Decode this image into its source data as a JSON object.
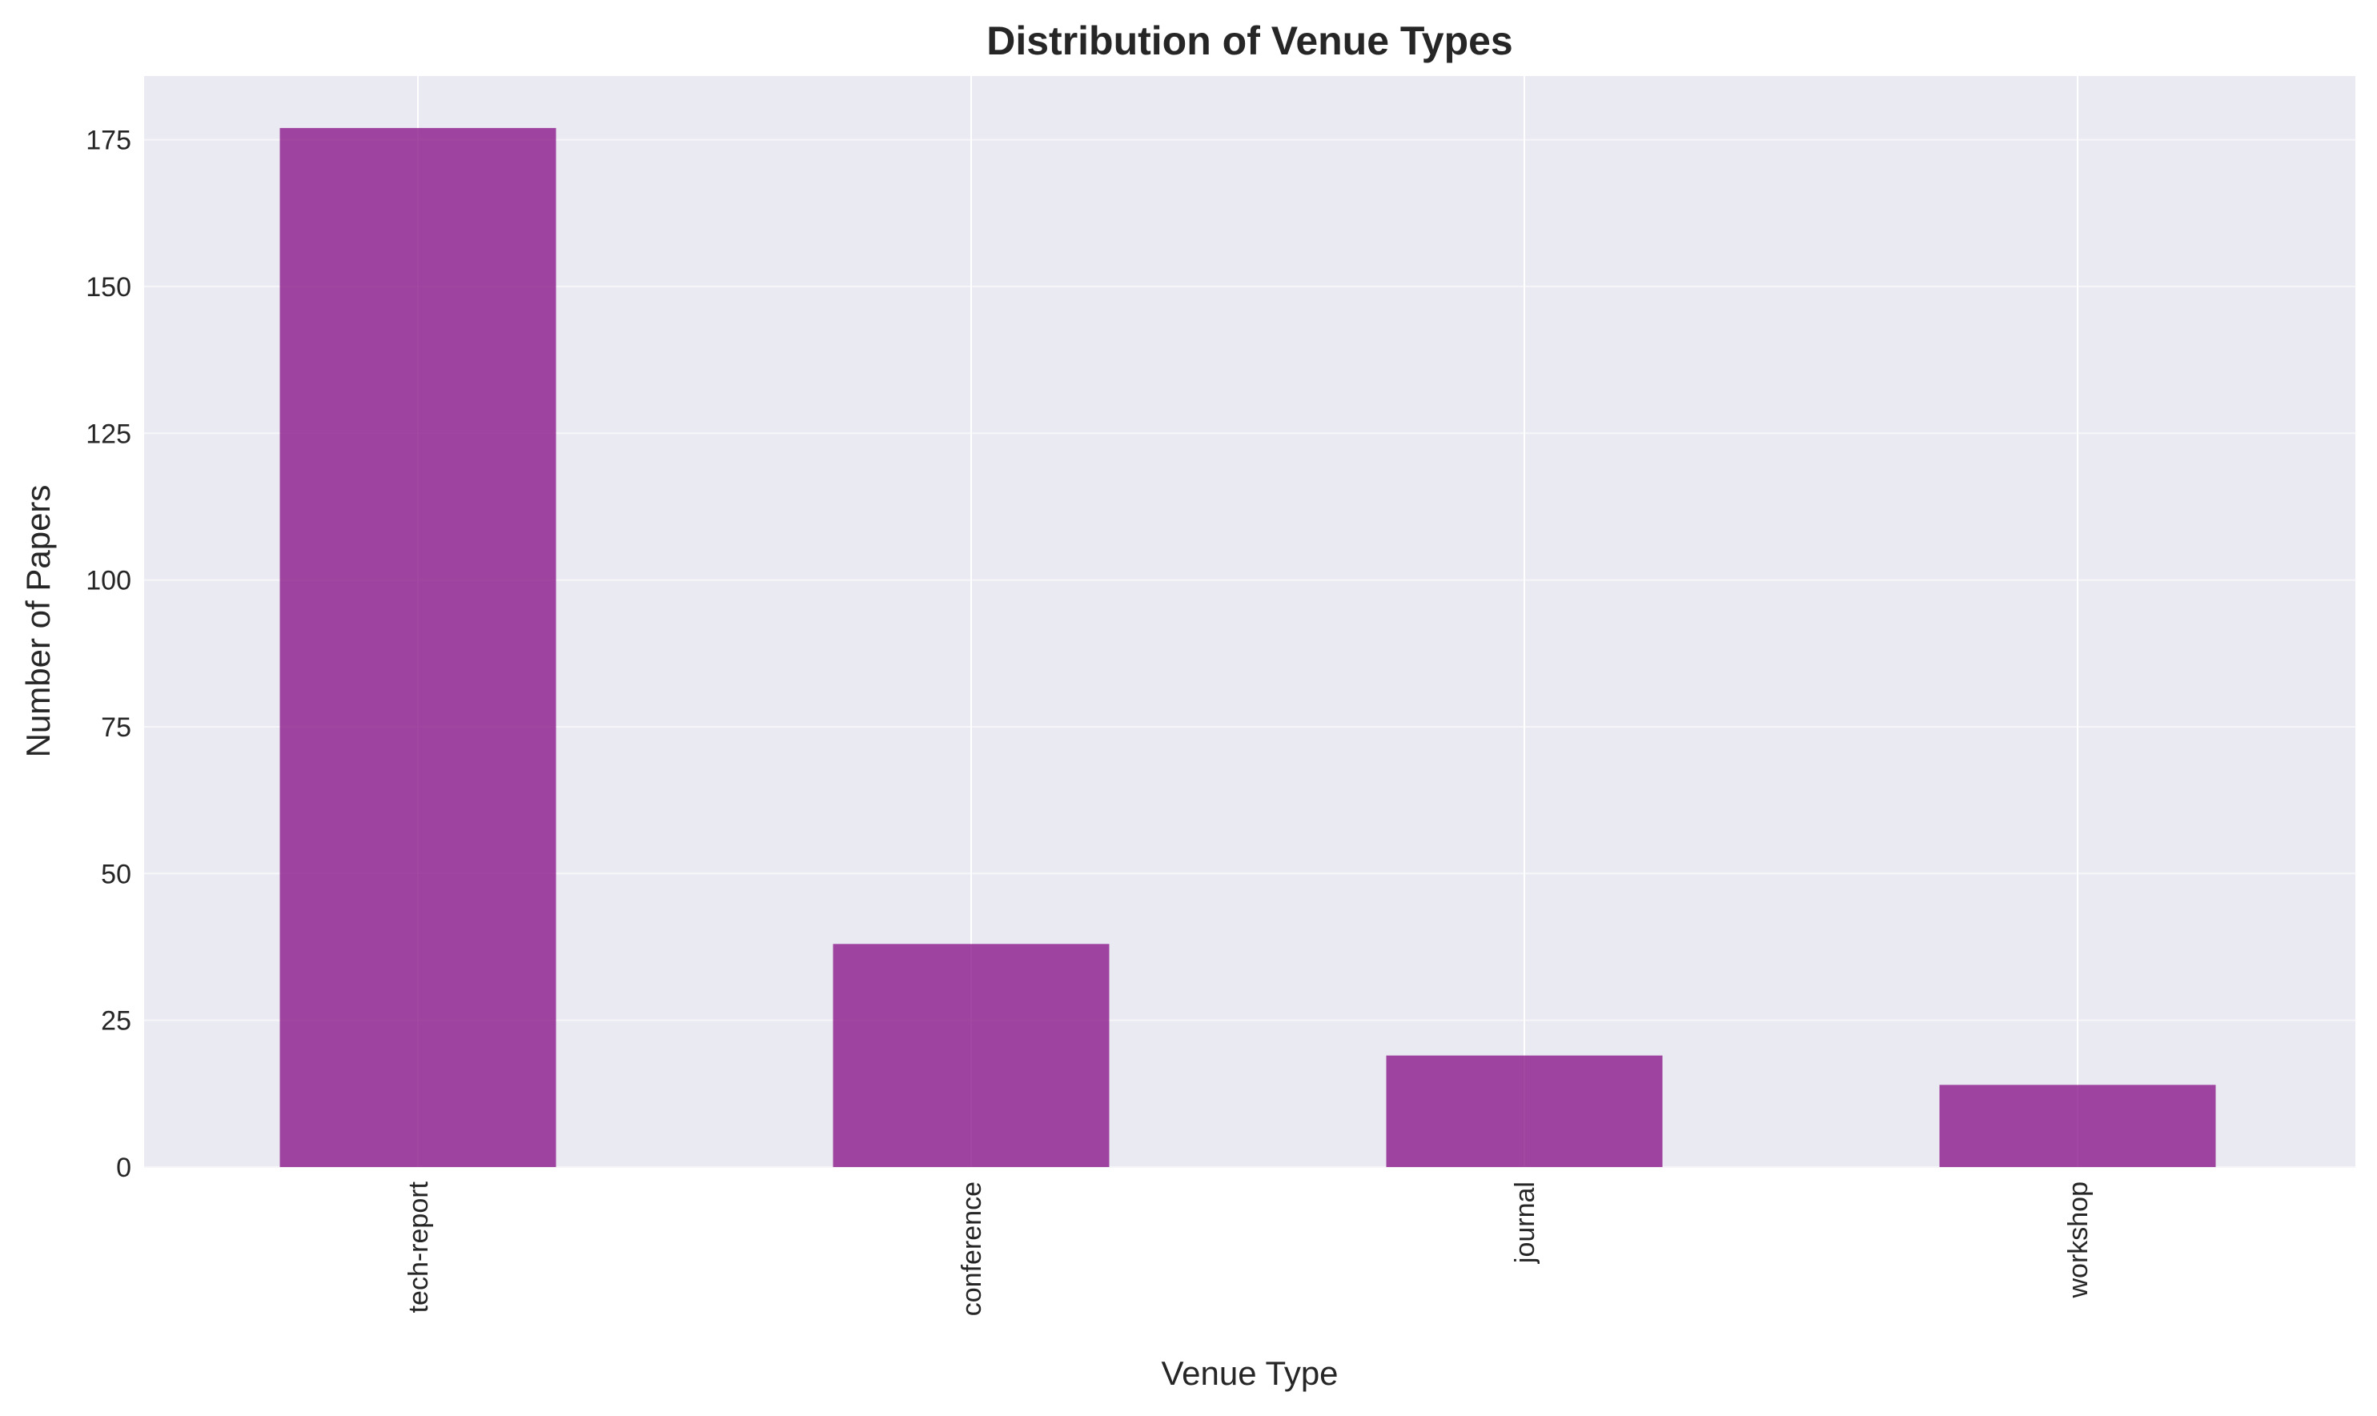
{
  "chart_data": {
    "type": "bar",
    "title": "Distribution of Venue Types",
    "xlabel": "Venue Type",
    "ylabel": "Number of Papers",
    "categories": [
      "tech-report",
      "conference",
      "journal",
      "workshop"
    ],
    "values": [
      177,
      38,
      19,
      14
    ],
    "ylim": [
      0,
      185.85
    ],
    "yticks": [
      0,
      25,
      50,
      75,
      100,
      125,
      150,
      175
    ],
    "grid": true,
    "bar_color": "#8b1a8b",
    "background_color": "#eaeaf2"
  }
}
